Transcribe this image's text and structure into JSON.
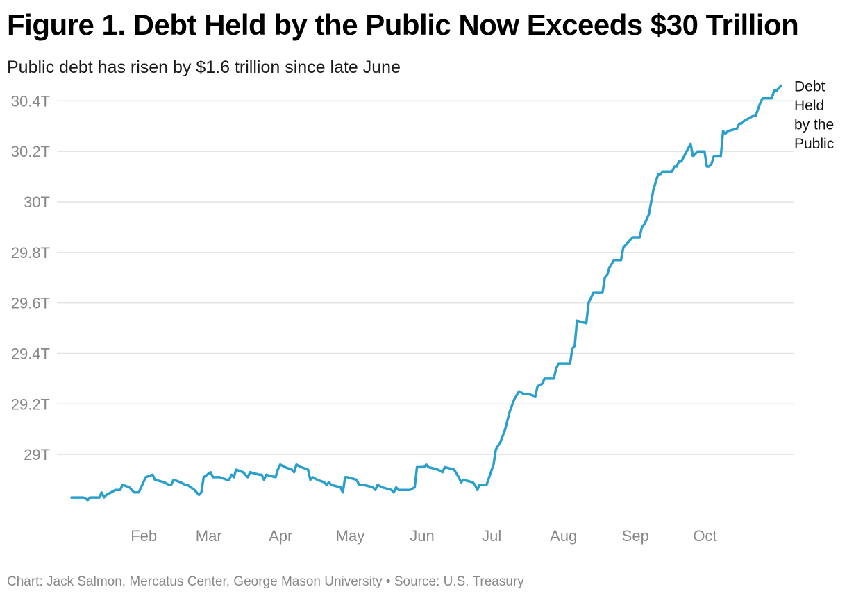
{
  "header": {
    "title": "Figure 1. Debt Held by the Public Now Exceeds $30 Trillion",
    "subtitle": "Public debt has risen by $1.6 trillion since late June"
  },
  "footer": {
    "source": "Chart: Jack Salmon, Mercatus Center, George Mason University • Source: U.S. Treasury"
  },
  "colors": {
    "line": "#2a9fcc",
    "grid": "#e2e2e2",
    "tick_text": "#888888"
  },
  "chart_data": {
    "type": "line",
    "title": "Figure 1. Debt Held by the Public Now Exceeds $30 Trillion",
    "subtitle": "Public debt has risen by $1.6 trillion since late June",
    "xlabel": "",
    "ylabel": "",
    "ylim": [
      28.8,
      30.46
    ],
    "yticks": [
      29,
      29.2,
      29.4,
      29.6,
      29.8,
      30,
      30.2,
      30.4
    ],
    "ytick_labels": [
      "29T",
      "29.2T",
      "29.4T",
      "29.6T",
      "29.8T",
      "30T",
      "30.2T",
      "30.4T"
    ],
    "xlim": [
      "2025-01-02",
      "2025-10-23"
    ],
    "xticks": [
      "2025-02-01",
      "2025-03-01",
      "2025-04-01",
      "2025-05-01",
      "2025-06-01",
      "2025-07-01",
      "2025-08-01",
      "2025-09-01",
      "2025-10-01"
    ],
    "xtick_labels": [
      "Feb",
      "Mar",
      "Apr",
      "May",
      "Jun",
      "Jul",
      "Aug",
      "Sep",
      "Oct"
    ],
    "grid": true,
    "legend": "none",
    "series": [
      {
        "name": "Debt Held by the Public",
        "label_lines": [
          "Debt",
          "Held",
          "by the",
          "Public"
        ],
        "unit": "trillion USD",
        "points": [
          [
            "2025-01-02",
            28.83
          ],
          [
            "2025-01-07",
            28.83
          ],
          [
            "2025-01-09",
            28.82
          ],
          [
            "2025-01-10",
            28.83
          ],
          [
            "2025-01-14",
            28.83
          ],
          [
            "2025-01-15",
            28.85
          ],
          [
            "2025-01-16",
            28.83
          ],
          [
            "2025-01-17",
            28.84
          ],
          [
            "2025-01-21",
            28.86
          ],
          [
            "2025-01-23",
            28.86
          ],
          [
            "2025-01-24",
            28.88
          ],
          [
            "2025-01-27",
            28.87
          ],
          [
            "2025-01-29",
            28.85
          ],
          [
            "2025-01-31",
            28.85
          ],
          [
            "2025-02-03",
            28.91
          ],
          [
            "2025-02-06",
            28.92
          ],
          [
            "2025-02-07",
            28.9
          ],
          [
            "2025-02-11",
            28.89
          ],
          [
            "2025-02-13",
            28.88
          ],
          [
            "2025-02-14",
            28.88
          ],
          [
            "2025-02-15",
            28.9
          ],
          [
            "2025-02-18",
            28.89
          ],
          [
            "2025-02-20",
            28.88
          ],
          [
            "2025-02-21",
            28.88
          ],
          [
            "2025-02-24",
            28.86
          ],
          [
            "2025-02-26",
            28.84
          ],
          [
            "2025-02-27",
            28.85
          ],
          [
            "2025-02-28",
            28.91
          ],
          [
            "2025-03-03",
            28.93
          ],
          [
            "2025-03-04",
            28.91
          ],
          [
            "2025-03-05",
            28.91
          ],
          [
            "2025-03-07",
            28.91
          ],
          [
            "2025-03-10",
            28.9
          ],
          [
            "2025-03-11",
            28.9
          ],
          [
            "2025-03-12",
            28.92
          ],
          [
            "2025-03-13",
            28.91
          ],
          [
            "2025-03-14",
            28.94
          ],
          [
            "2025-03-17",
            28.93
          ],
          [
            "2025-03-18",
            28.92
          ],
          [
            "2025-03-19",
            28.91
          ],
          [
            "2025-03-20",
            28.93
          ],
          [
            "2025-03-24",
            28.92
          ],
          [
            "2025-03-25",
            28.92
          ],
          [
            "2025-03-26",
            28.9
          ],
          [
            "2025-03-27",
            28.92
          ],
          [
            "2025-03-31",
            28.91
          ],
          [
            "2025-04-01",
            28.94
          ],
          [
            "2025-04-02",
            28.96
          ],
          [
            "2025-04-04",
            28.95
          ],
          [
            "2025-04-07",
            28.94
          ],
          [
            "2025-04-08",
            28.93
          ],
          [
            "2025-04-09",
            28.96
          ],
          [
            "2025-04-11",
            28.95
          ],
          [
            "2025-04-14",
            28.94
          ],
          [
            "2025-04-15",
            28.9
          ],
          [
            "2025-04-16",
            28.91
          ],
          [
            "2025-04-18",
            28.9
          ],
          [
            "2025-04-21",
            28.89
          ],
          [
            "2025-04-22",
            28.88
          ],
          [
            "2025-04-23",
            28.89
          ],
          [
            "2025-04-24",
            28.88
          ],
          [
            "2025-04-28",
            28.87
          ],
          [
            "2025-04-29",
            28.85
          ],
          [
            "2025-04-30",
            28.91
          ],
          [
            "2025-05-01",
            28.91
          ],
          [
            "2025-05-05",
            28.9
          ],
          [
            "2025-05-06",
            28.88
          ],
          [
            "2025-05-08",
            28.88
          ],
          [
            "2025-05-12",
            28.87
          ],
          [
            "2025-05-13",
            28.86
          ],
          [
            "2025-05-14",
            28.88
          ],
          [
            "2025-05-16",
            28.87
          ],
          [
            "2025-05-20",
            28.86
          ],
          [
            "2025-05-21",
            28.85
          ],
          [
            "2025-05-22",
            28.87
          ],
          [
            "2025-05-23",
            28.86
          ],
          [
            "2025-05-28",
            28.86
          ],
          [
            "2025-05-30",
            28.87
          ],
          [
            "2025-05-31",
            28.95
          ],
          [
            "2025-06-03",
            28.95
          ],
          [
            "2025-06-04",
            28.96
          ],
          [
            "2025-06-05",
            28.95
          ],
          [
            "2025-06-09",
            28.94
          ],
          [
            "2025-06-11",
            28.93
          ],
          [
            "2025-06-12",
            28.95
          ],
          [
            "2025-06-16",
            28.94
          ],
          [
            "2025-06-18",
            28.91
          ],
          [
            "2025-06-19",
            28.89
          ],
          [
            "2025-06-20",
            28.9
          ],
          [
            "2025-06-24",
            28.89
          ],
          [
            "2025-06-25",
            28.88
          ],
          [
            "2025-06-26",
            28.86
          ],
          [
            "2025-06-27",
            28.88
          ],
          [
            "2025-06-30",
            28.88
          ],
          [
            "2025-07-03",
            28.96
          ],
          [
            "2025-07-04",
            29.02
          ],
          [
            "2025-07-06",
            29.05
          ],
          [
            "2025-07-08",
            29.1
          ],
          [
            "2025-07-10",
            29.17
          ],
          [
            "2025-07-12",
            29.22
          ],
          [
            "2025-07-14",
            29.25
          ],
          [
            "2025-07-16",
            29.24
          ],
          [
            "2025-07-18",
            29.24
          ],
          [
            "2025-07-21",
            29.23
          ],
          [
            "2025-07-22",
            29.27
          ],
          [
            "2025-07-24",
            29.28
          ],
          [
            "2025-07-25",
            29.3
          ],
          [
            "2025-07-29",
            29.3
          ],
          [
            "2025-07-30",
            29.34
          ],
          [
            "2025-07-31",
            29.36
          ],
          [
            "2025-08-05",
            29.36
          ],
          [
            "2025-08-06",
            29.42
          ],
          [
            "2025-08-07",
            29.43
          ],
          [
            "2025-08-08",
            29.53
          ],
          [
            "2025-08-12",
            29.52
          ],
          [
            "2025-08-13",
            29.6
          ],
          [
            "2025-08-15",
            29.64
          ],
          [
            "2025-08-19",
            29.64
          ],
          [
            "2025-08-20",
            29.7
          ],
          [
            "2025-08-21",
            29.71
          ],
          [
            "2025-08-22",
            29.74
          ],
          [
            "2025-08-24",
            29.77
          ],
          [
            "2025-08-27",
            29.77
          ],
          [
            "2025-08-28",
            29.82
          ],
          [
            "2025-08-29",
            29.83
          ],
          [
            "2025-09-01",
            29.86
          ],
          [
            "2025-09-04",
            29.86
          ],
          [
            "2025-09-05",
            29.9
          ],
          [
            "2025-09-06",
            29.91
          ],
          [
            "2025-09-08",
            29.95
          ],
          [
            "2025-09-10",
            30.05
          ],
          [
            "2025-09-12",
            30.11
          ],
          [
            "2025-09-13",
            30.11
          ],
          [
            "2025-09-14",
            30.12
          ],
          [
            "2025-09-18",
            30.12
          ],
          [
            "2025-09-19",
            30.14
          ],
          [
            "2025-09-20",
            30.14
          ],
          [
            "2025-09-21",
            30.16
          ],
          [
            "2025-09-22",
            30.16
          ],
          [
            "2025-09-26",
            30.23
          ],
          [
            "2025-09-27",
            30.18
          ],
          [
            "2025-09-28",
            30.19
          ],
          [
            "2025-09-29",
            30.2
          ],
          [
            "2025-10-02",
            30.2
          ],
          [
            "2025-10-03",
            30.14
          ],
          [
            "2025-10-04",
            30.14
          ],
          [
            "2025-10-05",
            30.15
          ],
          [
            "2025-10-06",
            30.18
          ],
          [
            "2025-10-09",
            30.18
          ],
          [
            "2025-10-10",
            30.28
          ],
          [
            "2025-10-11",
            30.27
          ],
          [
            "2025-10-12",
            30.28
          ],
          [
            "2025-10-16",
            30.29
          ],
          [
            "2025-10-17",
            30.31
          ],
          [
            "2025-10-18",
            30.31
          ],
          [
            "2025-10-19",
            30.32
          ],
          [
            "2025-10-21",
            30.33
          ],
          [
            "2025-10-23",
            30.34
          ],
          [
            "2025-10-24",
            30.34
          ],
          [
            "2025-10-26",
            30.39
          ],
          [
            "2025-10-27",
            30.41
          ],
          [
            "2025-10-31",
            30.41
          ],
          [
            "2025-11-01",
            30.44
          ],
          [
            "2025-11-02",
            30.44
          ],
          [
            "2025-11-04",
            30.46
          ]
        ]
      }
    ]
  }
}
